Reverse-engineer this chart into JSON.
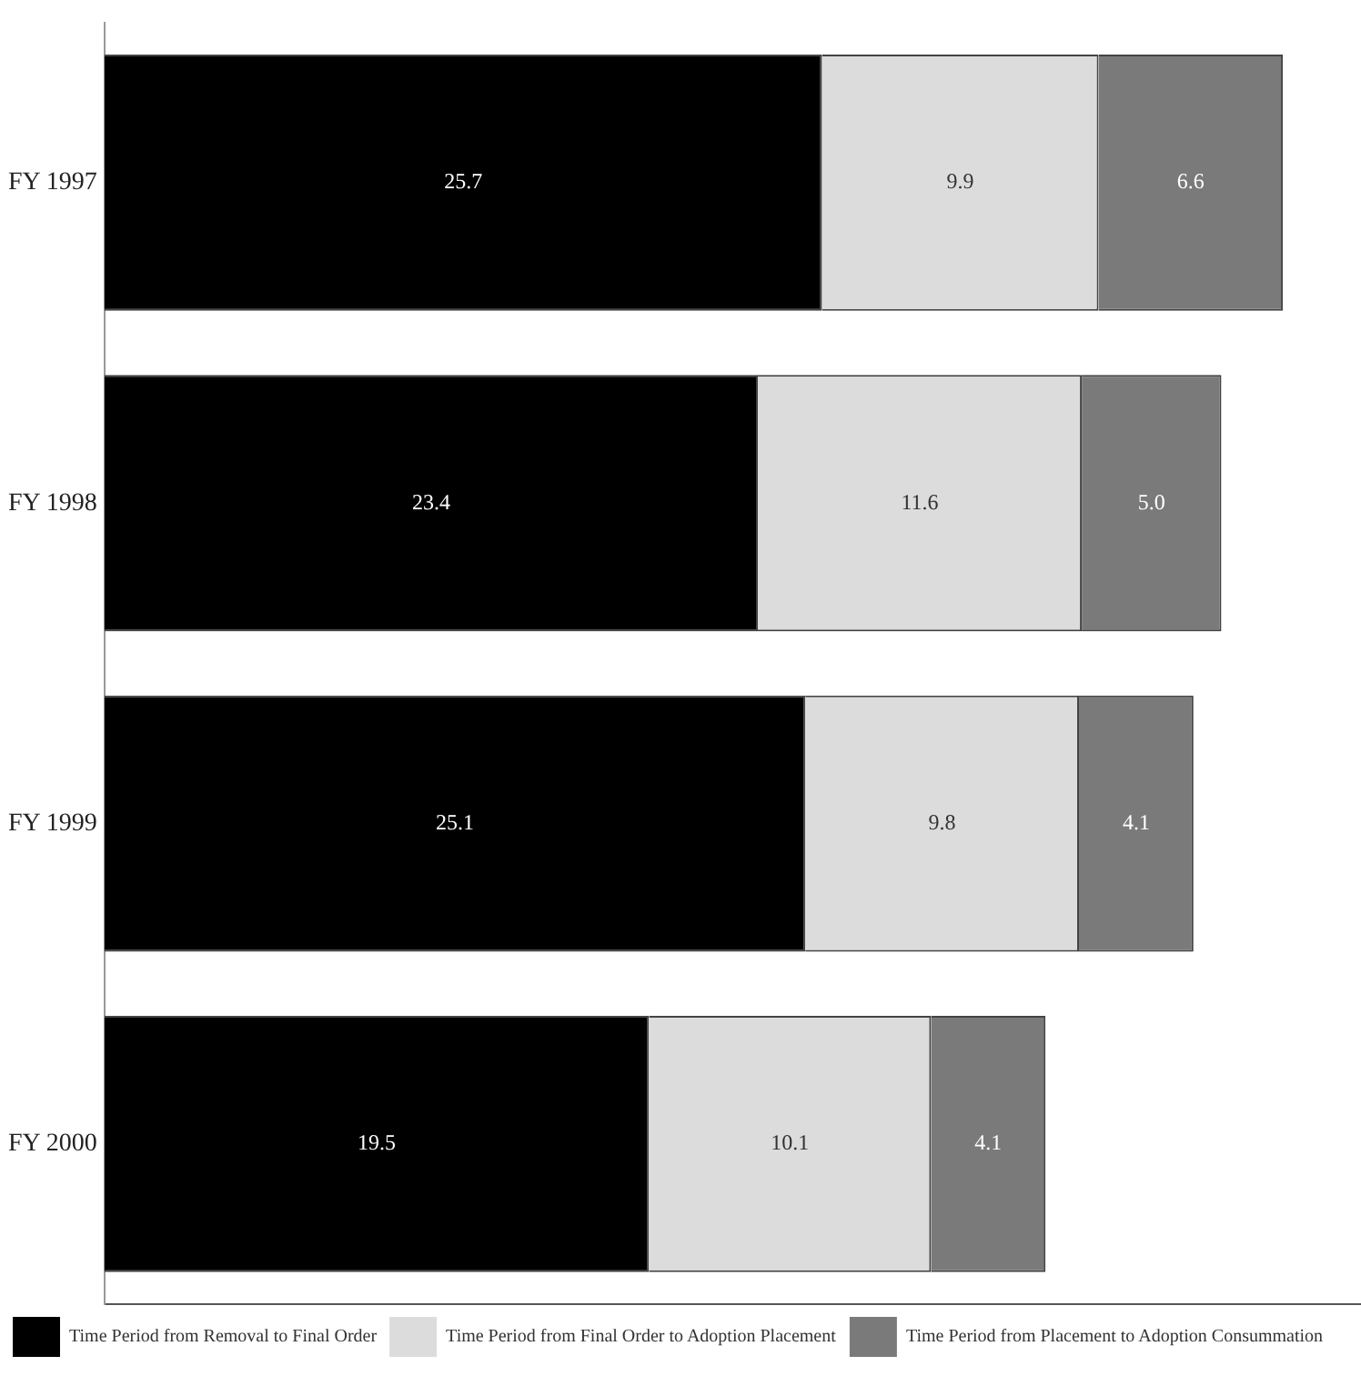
{
  "chart_data": {
    "type": "bar",
    "orientation": "horizontal",
    "stacked": true,
    "categories": [
      "FY 1997",
      "FY 1998",
      "FY 1999",
      "FY 2000"
    ],
    "series": [
      {
        "name": "Time Period from Removal to Final Order",
        "color": "#000000",
        "values": [
          25.7,
          23.4,
          25.1,
          19.5
        ],
        "value_labels": [
          "25.7",
          "23.4",
          "25.1",
          "19.5"
        ]
      },
      {
        "name": "Time Period from Final Order to Adoption Placement",
        "color": "#dcdcdc",
        "values": [
          9.9,
          11.6,
          9.8,
          10.1
        ],
        "value_labels": [
          "9.9",
          "11.6",
          "9.8",
          "10.1"
        ]
      },
      {
        "name": "Time Period from Placement to Adoption Consummation",
        "color": "#7a7a7a",
        "values": [
          6.6,
          5.0,
          4.1,
          4.1
        ],
        "value_labels": [
          "6.6",
          "5.0",
          "4.1",
          "4.1"
        ]
      }
    ],
    "legend": "bottom",
    "grid": false,
    "tick_labels": "y"
  }
}
